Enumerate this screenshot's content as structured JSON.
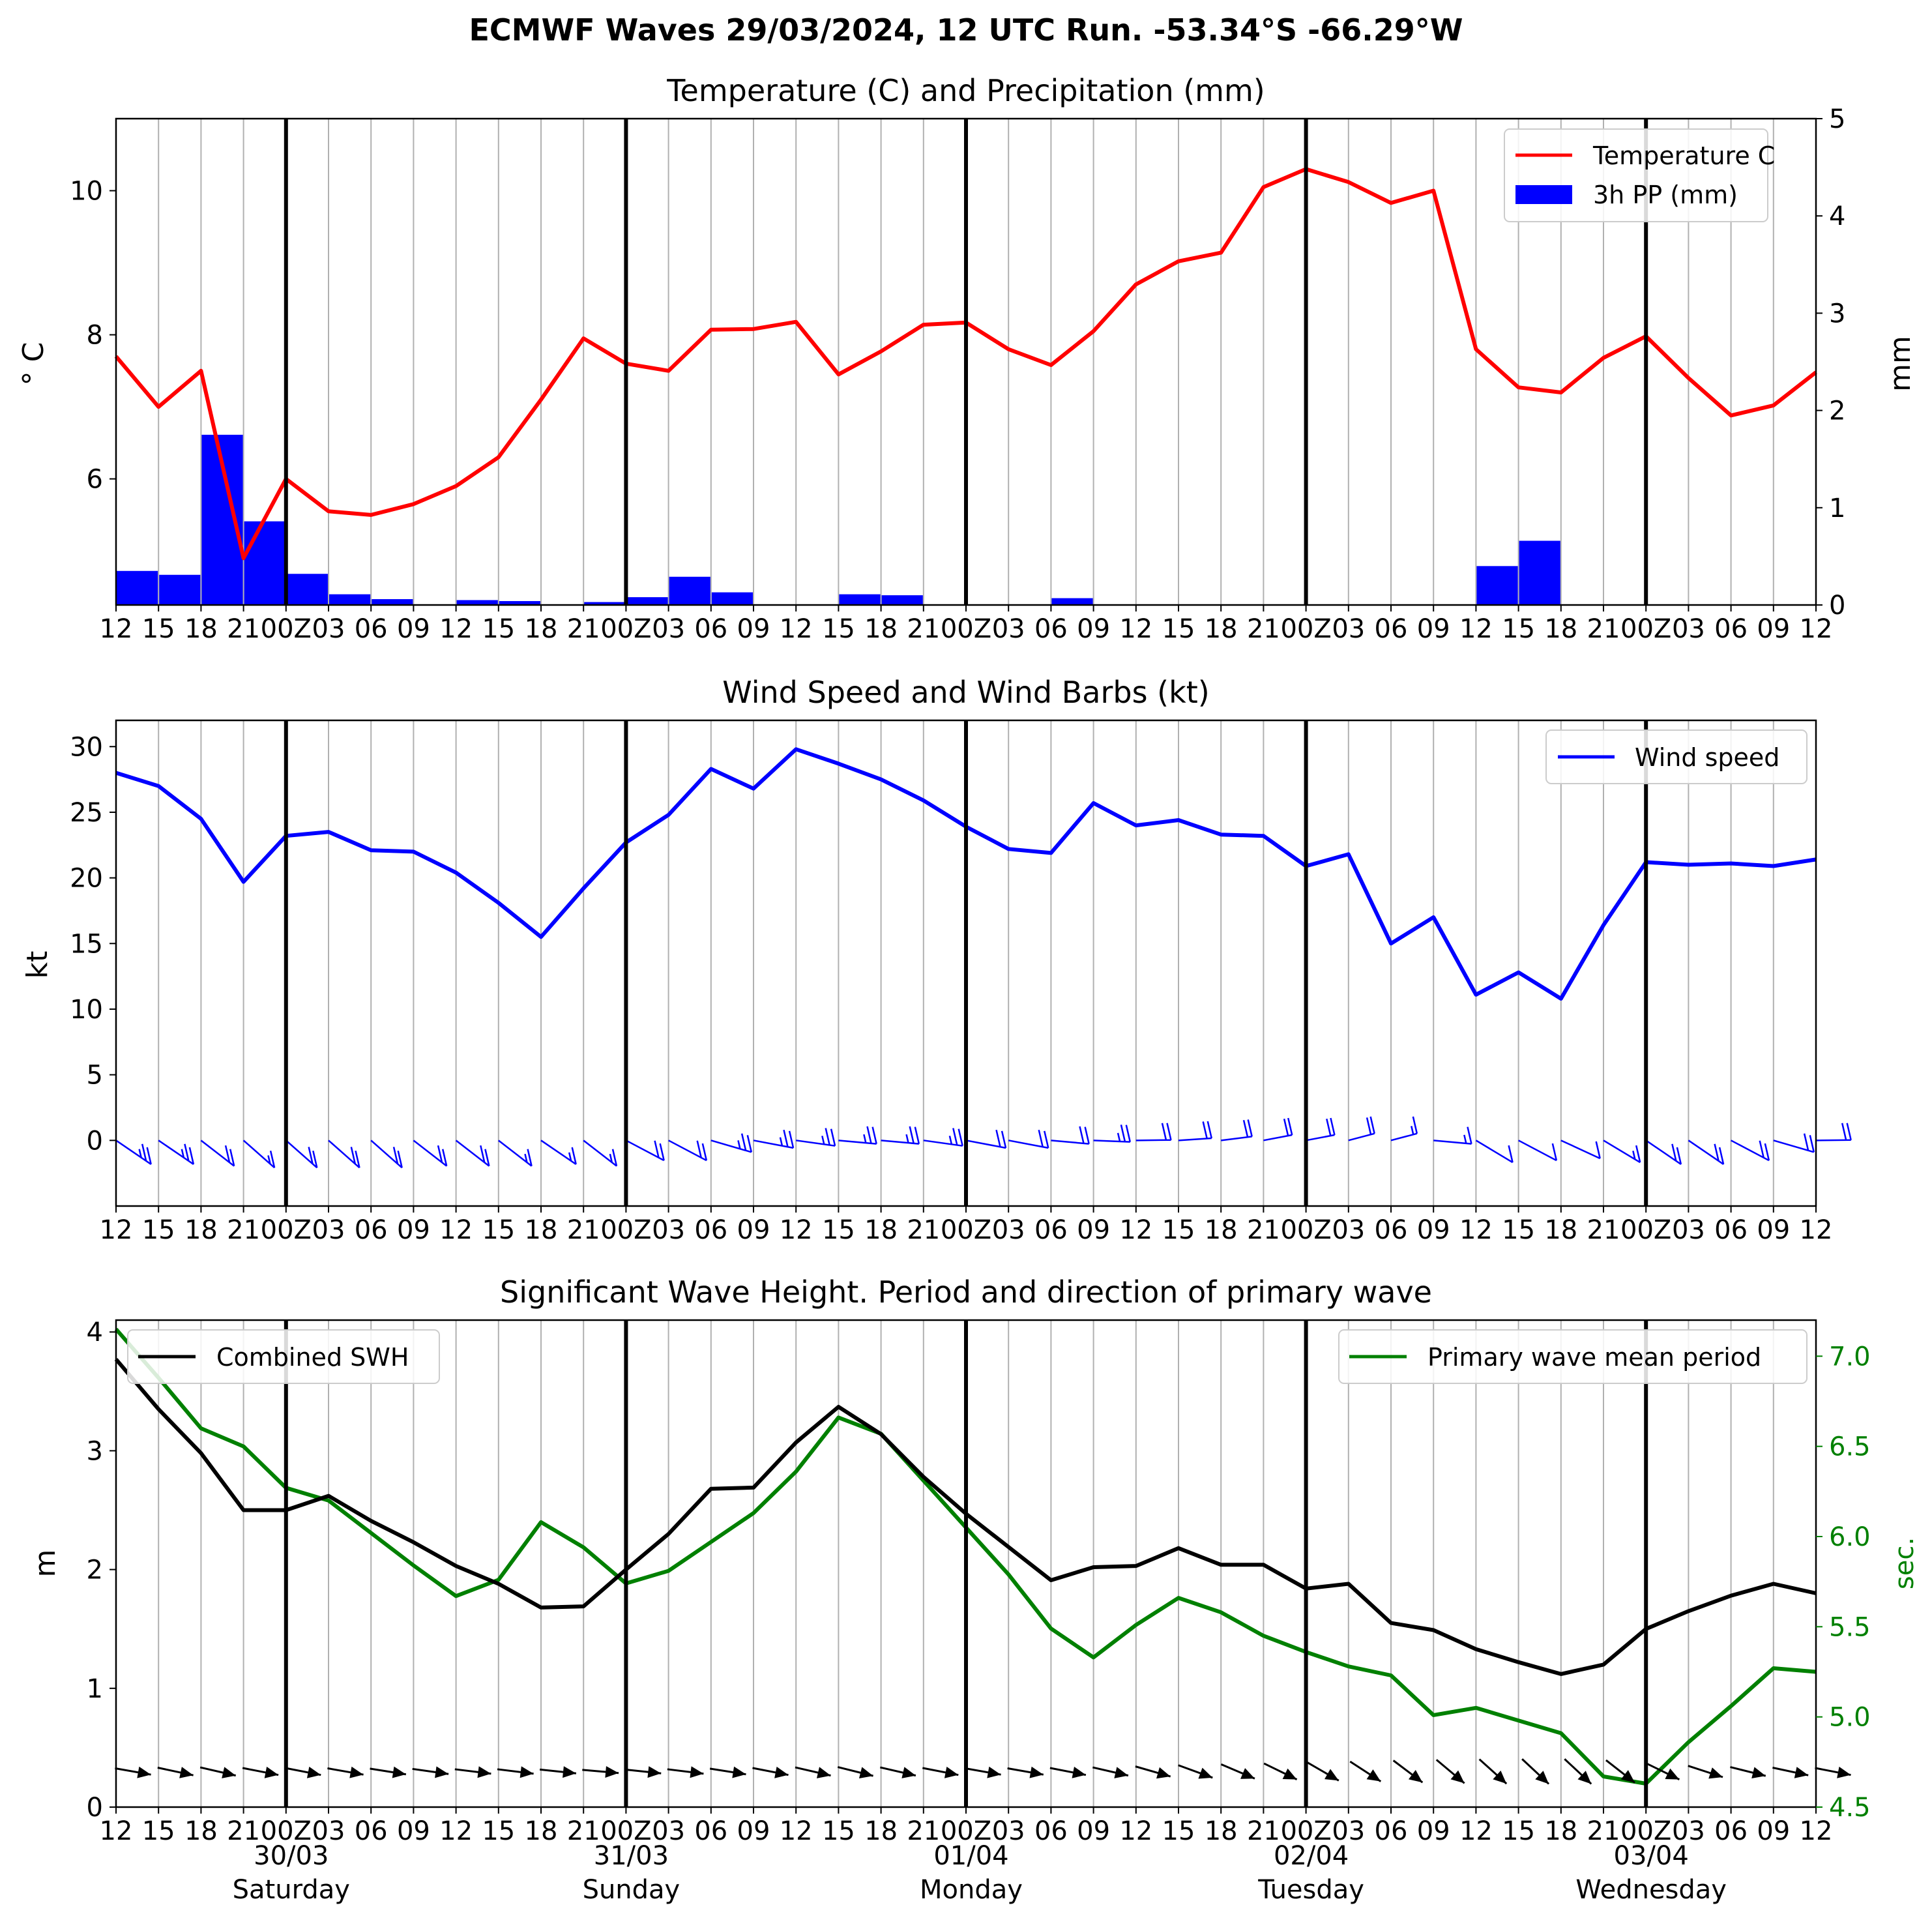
{
  "suptitle": "ECMWF Waves 29/03/2024, 12 UTC Run. -53.34°S -66.29°W",
  "x_tick_labels": [
    "12",
    "15",
    "18",
    "21",
    "00Z",
    "03",
    "06",
    "09",
    "12",
    "15",
    "18",
    "21",
    "00Z",
    "03",
    "06",
    "09",
    "12",
    "15",
    "18",
    "21",
    "00Z",
    "03",
    "06",
    "09",
    "12",
    "15",
    "18",
    "21",
    "00Z",
    "03",
    "06",
    "09",
    "12",
    "15",
    "18",
    "21",
    "00Z",
    "03",
    "06",
    "09",
    "12"
  ],
  "day_labels": [
    {
      "date": "30/03",
      "day": "Saturday"
    },
    {
      "date": "31/03",
      "day": "Sunday"
    },
    {
      "date": "01/04",
      "day": "Monday"
    },
    {
      "date": "02/04",
      "day": "Tuesday"
    },
    {
      "date": "03/04",
      "day": "Wednesday"
    }
  ],
  "colors": {
    "temperature": "#ff0000",
    "precipitation": "#0000ff",
    "wind": "#0000ff",
    "swh": "#000000",
    "period": "#008000",
    "grid": "#b0b0b0"
  },
  "chart_data": [
    {
      "id": "temp-precip",
      "type": "line+bar",
      "title": "Temperature (C) and Precipitation (mm)",
      "ylabel": "$^\\circ$C",
      "ylabel_display": "° C",
      "y2label": "mm",
      "ylim": [
        4.25,
        11.0
      ],
      "y2lim": [
        0,
        5
      ],
      "yticks": [
        "6",
        "8",
        "10"
      ],
      "y2ticks": [
        "0",
        "1",
        "2",
        "3",
        "4",
        "5"
      ],
      "x_steps_hours": 3,
      "legend": {
        "position": "top-right",
        "entries": [
          "Temperature C",
          "3h PP (mm)"
        ]
      },
      "series": [
        {
          "name": "Temperature C",
          "kind": "line",
          "values": [
            7.7,
            7.0,
            7.5,
            4.9,
            6.0,
            5.55,
            5.5,
            5.65,
            5.9,
            6.3,
            7.1,
            7.95,
            7.6,
            7.5,
            8.07,
            8.08,
            8.18,
            7.45,
            7.77,
            8.14,
            8.17,
            7.8,
            7.58,
            8.05,
            8.7,
            9.02,
            9.14,
            10.05,
            10.3,
            10.12,
            9.83,
            10.0,
            7.8,
            7.27,
            7.2,
            7.68,
            7.98,
            7.4,
            6.88,
            7.02,
            7.48
          ]
        },
        {
          "name": "3h PP (mm)",
          "kind": "bar",
          "values": [
            0.35,
            0.31,
            1.75,
            0.86,
            0.32,
            0.11,
            0.06,
            0.0,
            0.05,
            0.04,
            0.0,
            0.03,
            0.08,
            0.29,
            0.13,
            0.0,
            0.0,
            0.11,
            0.1,
            0.0,
            0.0,
            0.0,
            0.07,
            0.0,
            0.0,
            0.0,
            0.0,
            0.0,
            0.0,
            0.0,
            0.0,
            0.0,
            0.4,
            0.66,
            0.0,
            0.0,
            0.0,
            0.0,
            0.0,
            0.0
          ]
        }
      ]
    },
    {
      "id": "wind",
      "type": "line",
      "title": "Wind Speed and Wind Barbs (kt)",
      "ylabel": "kt",
      "ylim": [
        -5,
        32
      ],
      "yticks": [
        "0",
        "5",
        "10",
        "15",
        "20",
        "25",
        "30"
      ],
      "legend": {
        "position": "top-right",
        "entries": [
          "Wind speed"
        ]
      },
      "series": [
        {
          "name": "Wind speed",
          "values": [
            28.0,
            27.0,
            24.5,
            19.7,
            23.2,
            23.5,
            22.1,
            22.0,
            20.4,
            18.1,
            15.5,
            19.2,
            22.7,
            24.8,
            28.3,
            26.8,
            29.8,
            28.7,
            27.5,
            25.9,
            23.9,
            22.2,
            21.9,
            25.7,
            24.0,
            24.4,
            23.3,
            23.2,
            20.9,
            21.8,
            15.0,
            17.0,
            11.1,
            12.8,
            10.8,
            16.4,
            21.2,
            21.0,
            21.1,
            20.9,
            21.4
          ]
        }
      ],
      "barb_directions_deg": [
        240,
        240,
        235,
        230,
        230,
        230,
        230,
        235,
        235,
        235,
        240,
        235,
        250,
        250,
        270,
        280,
        285,
        290,
        290,
        285,
        280,
        280,
        290,
        295,
        300,
        305,
        310,
        315,
        315,
        320,
        320,
        290,
        245,
        250,
        255,
        245,
        240,
        240,
        250,
        270,
        300
      ]
    },
    {
      "id": "waves",
      "type": "line",
      "title": "Significant Wave Height. Period and direction of primary wave",
      "ylabel": "m",
      "y2label": "sec.",
      "ylim": [
        0,
        4.1
      ],
      "y2lim": [
        4.5,
        7.2
      ],
      "yticks": [
        "0",
        "1",
        "2",
        "3",
        "4"
      ],
      "y2ticks": [
        "4.5",
        "5.0",
        "5.5",
        "6.0",
        "6.5",
        "7.0"
      ],
      "legend": [
        {
          "position": "top-left",
          "entries": [
            "Combined SWH"
          ]
        },
        {
          "position": "top-right",
          "entries": [
            "Primary wave mean period"
          ]
        }
      ],
      "series": [
        {
          "name": "Combined SWH",
          "axis": "left",
          "values": [
            3.77,
            3.35,
            2.98,
            2.5,
            2.5,
            2.62,
            2.41,
            2.23,
            2.03,
            1.88,
            1.68,
            1.69,
            2.0,
            2.3,
            2.68,
            2.69,
            3.07,
            3.37,
            3.14,
            2.78,
            2.47,
            2.19,
            1.91,
            2.02,
            2.03,
            2.18,
            2.04,
            2.04,
            1.84,
            1.88,
            1.55,
            1.49,
            1.33,
            1.22,
            1.12,
            1.2,
            1.5,
            1.65,
            1.78,
            1.88,
            1.8
          ]
        },
        {
          "name": "Primary wave mean period",
          "axis": "right",
          "values": [
            7.15,
            6.88,
            6.6,
            6.5,
            6.27,
            6.2,
            6.02,
            5.84,
            5.67,
            5.76,
            6.08,
            5.94,
            5.74,
            5.81,
            5.97,
            6.13,
            6.36,
            6.66,
            6.57,
            6.31,
            6.05,
            5.79,
            5.49,
            5.33,
            5.51,
            5.66,
            5.58,
            5.45,
            5.36,
            5.28,
            5.23,
            5.01,
            5.05,
            4.98,
            4.91,
            4.67,
            4.63,
            4.86,
            5.06,
            5.27,
            5.25
          ]
        }
      ],
      "wave_direction_deg": [
        280,
        282,
        283,
        281,
        281,
        280,
        279,
        278,
        277,
        277,
        276,
        275,
        276,
        277,
        279,
        281,
        283,
        284,
        283,
        281,
        280,
        280,
        281,
        283,
        286,
        290,
        293,
        296,
        300,
        303,
        307,
        310,
        312,
        313,
        313,
        308,
        296,
        288,
        284,
        282,
        281
      ]
    }
  ]
}
